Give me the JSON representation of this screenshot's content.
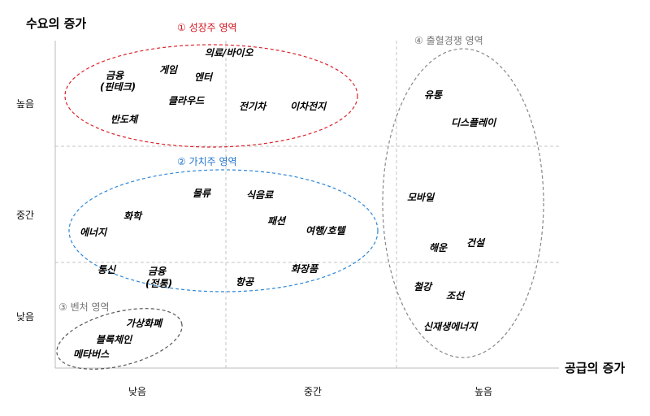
{
  "axes": {
    "y_title": "수요의 증가",
    "x_title": "공급의 증가",
    "y_ticks": [
      "높음",
      "중간",
      "낮음"
    ],
    "x_ticks": [
      "낮음",
      "중간",
      "높음"
    ]
  },
  "zones": [
    {
      "id": "growth",
      "title": "① 성장주 영역",
      "color": "#d0121b",
      "border": "#d9242b"
    },
    {
      "id": "value",
      "title": "② 가치주 영역",
      "color": "#1e73c8",
      "border": "#2e86d6"
    },
    {
      "id": "venture",
      "title": "③ 벤처 영역",
      "color": "#777777",
      "border": "#555555"
    },
    {
      "id": "excess",
      "title": "④ 출혈경쟁 영역",
      "color": "#777777",
      "border": "#888888"
    }
  ],
  "items": {
    "growth": [
      "의료/바이오",
      "게임",
      "엔터",
      "금융",
      "(핀테크)",
      "클라우드",
      "전기차",
      "이차전지",
      "반도체"
    ],
    "value": [
      "물류",
      "식음료",
      "화학",
      "에너지",
      "패션",
      "여행/호텔",
      "통신",
      "금융",
      "(전통)",
      "항공",
      "화장품"
    ],
    "venture": [
      "가상화폐",
      "블록체인",
      "메타버스"
    ],
    "excess": [
      "유통",
      "디스플레이",
      "모바일",
      "해운",
      "건설",
      "철강",
      "조선",
      "신재생에너지"
    ]
  }
}
